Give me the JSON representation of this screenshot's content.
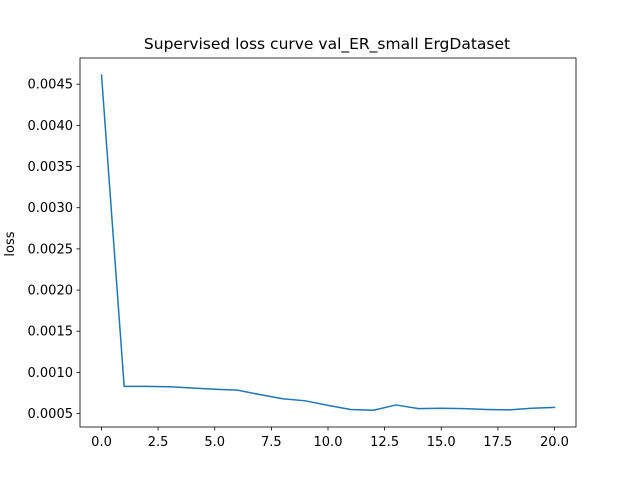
{
  "chart_data": {
    "type": "line",
    "title": "Supervised loss curve val_ER_small ErgDataset",
    "xlabel": "",
    "ylabel": "loss",
    "x": [
      0,
      1,
      2,
      3,
      4,
      5,
      6,
      7,
      8,
      9,
      10,
      11,
      12,
      13,
      14,
      15,
      16,
      17,
      18,
      19,
      20
    ],
    "series": [
      {
        "values": [
          0.00461,
          0.00083,
          0.00083,
          0.000825,
          0.00081,
          0.000795,
          0.000785,
          0.00073,
          0.00068,
          0.000655,
          0.0006,
          0.00055,
          0.00054,
          0.000605,
          0.00056,
          0.000565,
          0.00056,
          0.00055,
          0.000545,
          0.000565,
          0.000575
        ],
        "color": "#1f77b4"
      }
    ],
    "xlim": [
      -0.95,
      20.95
    ],
    "ylim": [
      0.000337,
      0.004818
    ],
    "xticks": [
      0.0,
      2.5,
      5.0,
      7.5,
      10.0,
      12.5,
      15.0,
      17.5,
      20.0
    ],
    "xtick_labels": [
      "0.0",
      "2.5",
      "5.0",
      "7.5",
      "10.0",
      "12.5",
      "15.0",
      "17.5",
      "20.0"
    ],
    "yticks": [
      0.0005,
      0.001,
      0.0015,
      0.002,
      0.0025,
      0.003,
      0.0035,
      0.004,
      0.0045
    ],
    "ytick_labels": [
      "0.0005",
      "0.0010",
      "0.0015",
      "0.0020",
      "0.0025",
      "0.0030",
      "0.0035",
      "0.0040",
      "0.0045"
    ],
    "grid": false,
    "legend": "none"
  }
}
